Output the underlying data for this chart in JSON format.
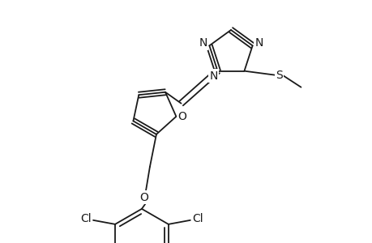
{
  "background_color": "#ffffff",
  "line_color": "#1a1a1a",
  "line_width": 1.3,
  "font_size": 10,
  "figsize": [
    4.6,
    3.0
  ],
  "dpi": 100,
  "xlim": [
    0,
    460
  ],
  "ylim": [
    0,
    300
  ]
}
